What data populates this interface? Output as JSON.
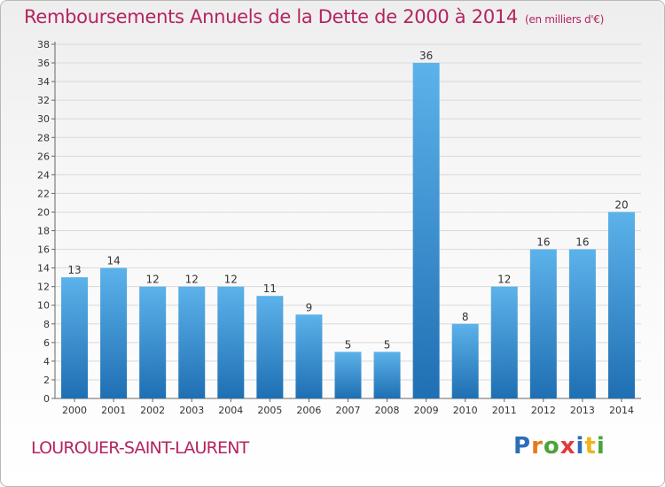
{
  "title": "Remboursements Annuels de la Dette de 2000 à 2014",
  "unit": "(en milliers d'€)",
  "commune": "LOUROUER-SAINT-LAURENT",
  "logo": {
    "letters": [
      "P",
      "r",
      "o",
      "x",
      "i",
      "t",
      "i"
    ],
    "colors": [
      "#2e6cb8",
      "#e8781c",
      "#4aa43a",
      "#e23a3a",
      "#2e6cb8",
      "#f0b41c",
      "#4aa43a"
    ]
  },
  "colors": {
    "bar_light": "#5cb2ea",
    "bar_dark": "#1f6fb3",
    "title": "#b5245f",
    "grid": "#d9d9d9"
  },
  "chart_data": {
    "type": "bar",
    "categories": [
      "2000",
      "2001",
      "2002",
      "2003",
      "2004",
      "2005",
      "2006",
      "2007",
      "2008",
      "2009",
      "2010",
      "2011",
      "2012",
      "2013",
      "2014"
    ],
    "values": [
      13,
      14,
      12,
      12,
      12,
      11,
      9,
      5,
      5,
      36,
      8,
      12,
      16,
      16,
      20
    ],
    "ylim": [
      0,
      38
    ],
    "yticks": [
      0,
      2,
      4,
      6,
      8,
      10,
      12,
      14,
      16,
      18,
      20,
      22,
      24,
      26,
      28,
      30,
      32,
      34,
      36,
      38
    ],
    "grid": true
  }
}
